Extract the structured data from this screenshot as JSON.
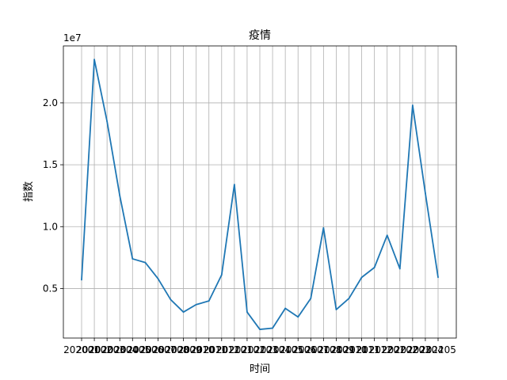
{
  "chart_data": {
    "type": "line",
    "title": "疫情",
    "xlabel": "时间",
    "ylabel": "指数",
    "y_offset_label": "1e7",
    "grid": true,
    "ylim": [
      0.1,
      2.46
    ],
    "y_tick_values": [
      0.5,
      1.0,
      1.5,
      2.0
    ],
    "y_tick_labels": [
      "0.5",
      "1.0",
      "1.5",
      "2.0"
    ],
    "categories": [
      "202001",
      "202002",
      "202003",
      "202004",
      "202005",
      "202006",
      "202007",
      "202008",
      "202009",
      "202010",
      "202011",
      "202012",
      "202101",
      "202102",
      "202103",
      "202104",
      "202105",
      "202106",
      "202107",
      "202108",
      "202109",
      "202110",
      "202111",
      "202112",
      "202201",
      "202202",
      "202203",
      "202204",
      "202205"
    ],
    "x_tick_labels": [
      "202001",
      "202002",
      "202003",
      "202004",
      "202005",
      "202006",
      "202007",
      "202008",
      "202009",
      "202010",
      "202011",
      "202012",
      "202101",
      "202102",
      "202103",
      "202104",
      "202105",
      "202106",
      "202107",
      "202108",
      "202109",
      "202110",
      "202111",
      "202112",
      "202201",
      "202202",
      "202203",
      "202204",
      "202205"
    ],
    "series": [
      {
        "color": "#1f77b4",
        "values": [
          0.57,
          2.35,
          1.85,
          1.25,
          0.74,
          0.71,
          0.58,
          0.41,
          0.31,
          0.37,
          0.4,
          0.61,
          1.34,
          0.31,
          0.17,
          0.18,
          0.34,
          0.27,
          0.42,
          0.99,
          0.33,
          0.42,
          0.59,
          0.67,
          0.93,
          0.66,
          1.98,
          1.27,
          0.59
        ]
      }
    ]
  }
}
